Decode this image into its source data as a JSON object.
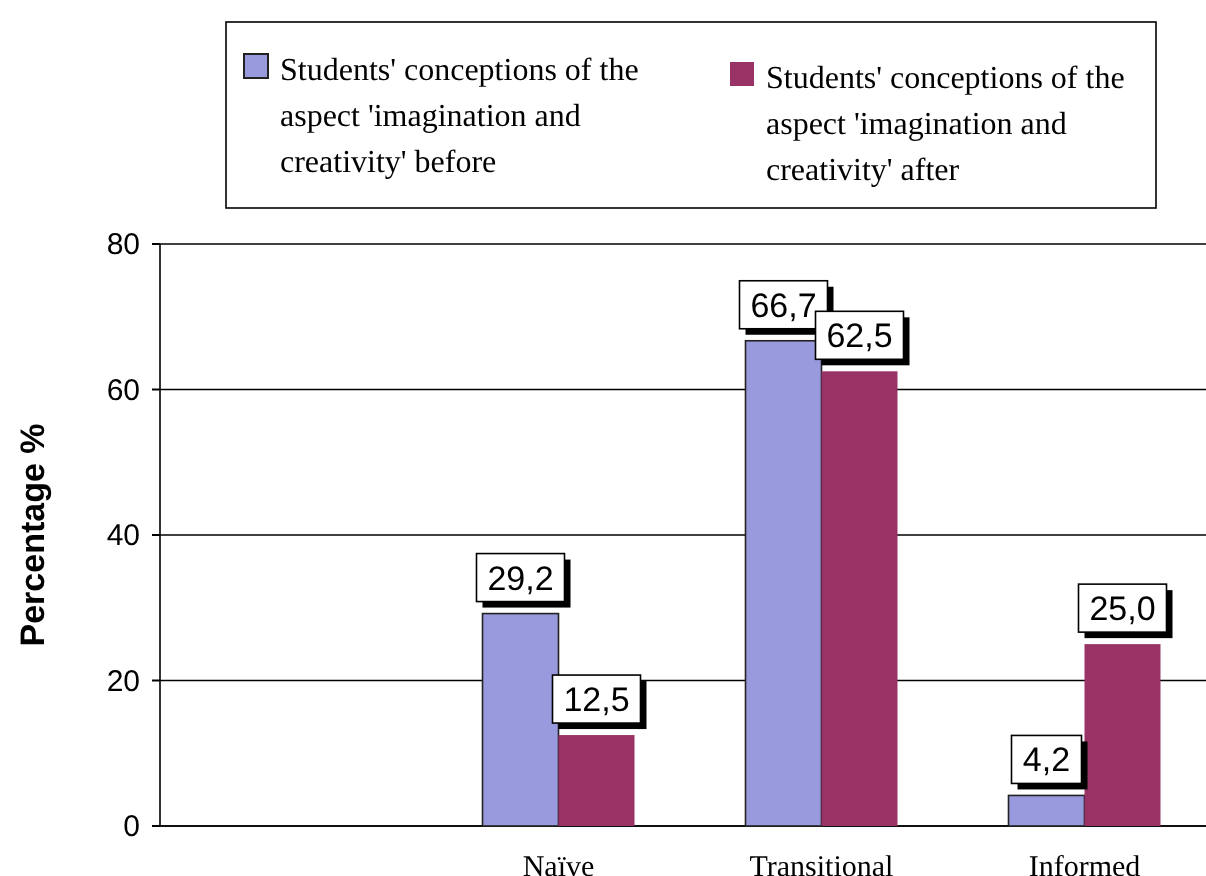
{
  "chart_data": {
    "type": "bar",
    "ylabel": "Percentage %",
    "categories": [
      null,
      "Naïve",
      "Transitional",
      "Informed"
    ],
    "series": [
      {
        "name": "Students' conceptions of the aspect 'imagination and creativity' before",
        "color": "#9999dd",
        "values": [
          null,
          29.2,
          66.7,
          4.2
        ],
        "value_labels": [
          null,
          "29,2",
          "66,7",
          "4,2"
        ]
      },
      {
        "name": "Students' conceptions of the aspect 'imagination and creativity' after",
        "color": "#993366",
        "values": [
          null,
          12.5,
          62.5,
          25.0
        ],
        "value_labels": [
          null,
          "12,5",
          "62,5",
          "25,0"
        ]
      }
    ],
    "ylim": [
      0,
      80
    ],
    "yticks": [
      0,
      20,
      40,
      60,
      80
    ],
    "grid": "y",
    "legend": "top"
  }
}
